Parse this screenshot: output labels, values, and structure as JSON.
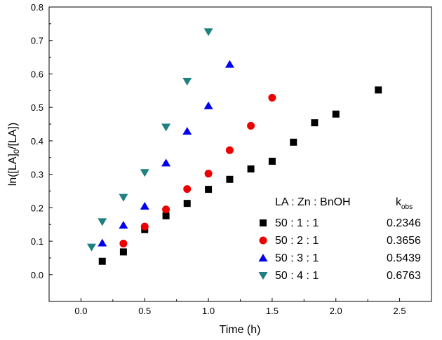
{
  "chart_data": {
    "type": "scatter",
    "xlabel": "Time (h)",
    "ylabel": {
      "prefix": "ln([LA]",
      "subscript": "0",
      "suffix": "/[LA])"
    },
    "xlim": [
      -0.25,
      2.75
    ],
    "ylim": [
      -0.08,
      0.8
    ],
    "x_ticks": [
      0.0,
      0.5,
      1.0,
      1.5,
      2.0,
      2.5
    ],
    "x_tick_labels": [
      "0.0",
      "0.5",
      "1.0",
      "1.5",
      "2.0",
      "2.5"
    ],
    "y_ticks": [
      0.0,
      0.1,
      0.2,
      0.3,
      0.4,
      0.5,
      0.6,
      0.7,
      0.8
    ],
    "y_tick_labels": [
      "0.0",
      "0.1",
      "0.2",
      "0.3",
      "0.4",
      "0.5",
      "0.6",
      "0.7",
      "0.8"
    ],
    "grid": false,
    "legend_position": "bottom-right",
    "legend": {
      "header_ratio": "LA : Zn : BnOH",
      "header_k": "k",
      "header_k_sub": "obs"
    },
    "series": [
      {
        "name": "50 : 1 : 1",
        "k_obs": "0.2346",
        "marker": "square",
        "color": "#000000",
        "x": [
          0.167,
          0.333,
          0.5,
          0.667,
          0.833,
          1.0,
          1.167,
          1.333,
          1.5,
          1.667,
          1.833,
          2.0,
          2.333
        ],
        "y": [
          0.04,
          0.068,
          0.135,
          0.176,
          0.213,
          0.255,
          0.285,
          0.316,
          0.339,
          0.396,
          0.454,
          0.48,
          0.552
        ]
      },
      {
        "name": "50 : 2 : 1",
        "k_obs": "0.3656",
        "marker": "circle",
        "color": "#ee0000",
        "x": [
          0.333,
          0.5,
          0.667,
          0.833,
          1.0,
          1.167,
          1.333,
          1.5
        ],
        "y": [
          0.093,
          0.144,
          0.195,
          0.256,
          0.302,
          0.372,
          0.445,
          0.529
        ]
      },
      {
        "name": "50 : 3 : 1",
        "k_obs": "0.5439",
        "marker": "triangle-up",
        "color": "#0000ee",
        "x": [
          0.167,
          0.333,
          0.5,
          0.667,
          0.833,
          1.0,
          1.167
        ],
        "y": [
          0.095,
          0.148,
          0.205,
          0.334,
          0.429,
          0.505,
          0.629
        ]
      },
      {
        "name": "50 : 4 : 1",
        "k_obs": "0.6763",
        "marker": "triangle-down",
        "color": "#1e8080",
        "x": [
          0.083,
          0.167,
          0.333,
          0.5,
          0.667,
          0.833,
          1.0
        ],
        "y": [
          0.082,
          0.158,
          0.231,
          0.305,
          0.441,
          0.578,
          0.726
        ]
      }
    ]
  }
}
